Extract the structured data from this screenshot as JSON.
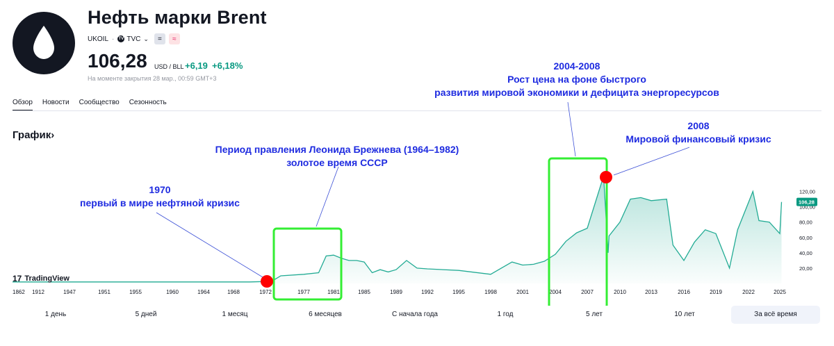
{
  "header": {
    "title": "Нефть марки Brent",
    "ticker": "UKOIL",
    "source": "TVC",
    "price": "106,28",
    "unit": "USD / BLL",
    "change": "+6,19",
    "change_pct": "+6,18%",
    "close_note": "На моменте закрытия 28 мар., 00:59 GMT+3",
    "logo_icon": "drop-icon",
    "eq_symbol": "=",
    "approx_symbol": "≈",
    "tvc_badge": "TV"
  },
  "tabs": [
    {
      "label": "Обзор"
    },
    {
      "label": "Новости"
    },
    {
      "label": "Сообщество"
    },
    {
      "label": "Сезонность"
    }
  ],
  "chart_section": {
    "title": "График",
    "title_chevron": "›",
    "watermark": "TradingView",
    "watermark_mark": "17"
  },
  "chart_data": {
    "type": "area",
    "x_tick_labels": [
      "1862",
      "1912",
      "1947",
      "1951",
      "1955",
      "1960",
      "1964",
      "1968",
      "1972",
      "1977",
      "1981",
      "1985",
      "1989",
      "1992",
      "1995",
      "1998",
      "2001",
      "2004",
      "2007",
      "2010",
      "2013",
      "2016",
      "2019",
      "2022",
      "2025"
    ],
    "y_tick_labels": [
      "20,00",
      "40,00",
      "60,00",
      "80,00",
      "100,00",
      "120,00"
    ],
    "ylim": [
      0,
      125
    ],
    "current_label": "106,28",
    "colors": {
      "line": "#22ab94",
      "fill": "#22ab94",
      "badge": "#089981",
      "marker": "#ff0000",
      "box": "#33ee33",
      "annotation": "#1e2be0"
    },
    "series": [
      {
        "x": [
          "1862",
          "1912",
          "1947",
          "1951",
          "1955",
          "1960",
          "1964",
          "1968",
          "1970",
          "1972",
          "1973",
          "1974",
          "1977",
          "1979",
          "1980",
          "1981",
          "1982",
          "1983",
          "1984",
          "1985",
          "1986",
          "1987",
          "1988",
          "1989",
          "1990",
          "1991",
          "1992",
          "1995",
          "1998",
          "1999",
          "2000",
          "2001",
          "2002",
          "2003",
          "2004",
          "2005",
          "2006",
          "2007",
          "2008-07",
          "2008-12",
          "2009",
          "2010",
          "2011",
          "2012",
          "2013",
          "2014-06",
          "2015-01",
          "2016-01",
          "2017",
          "2018",
          "2019",
          "2020-04",
          "2021",
          "2022-06",
          "2023",
          "2024",
          "2025-01",
          "2025-03"
        ],
        "values": [
          2,
          2,
          2,
          2,
          2,
          2,
          2,
          2,
          2,
          2.5,
          4,
          10,
          12,
          14,
          36,
          37,
          33,
          30,
          30,
          28,
          14,
          18,
          15,
          18,
          30,
          20,
          19,
          17,
          12,
          20,
          28,
          24,
          25,
          29,
          38,
          55,
          66,
          72,
          140,
          40,
          62,
          80,
          110,
          112,
          108,
          110,
          50,
          30,
          54,
          70,
          65,
          20,
          70,
          120,
          82,
          80,
          65,
          106.28
        ]
      }
    ]
  },
  "annotations": {
    "a1970": {
      "line1": "1970",
      "line2": "первый в мире нефтяной кризис"
    },
    "brezhnev": {
      "line1": "Период правления Леонида Брежнева (1964–1982)",
      "line2": "золотое время СССР"
    },
    "boom": {
      "line1": "2004-2008",
      "line2": "Рост цена на фоне быстрого",
      "line3": "развития мировой экономики и дефицита энергоресурсов"
    },
    "crisis": {
      "line1": "2008",
      "line2": "Мировой финансовый кризис"
    }
  },
  "ranges": [
    {
      "label": "1 день"
    },
    {
      "label": "5 дней"
    },
    {
      "label": "1 месяц"
    },
    {
      "label": "6 месяцев"
    },
    {
      "label": "С начала года"
    },
    {
      "label": "1 год"
    },
    {
      "label": "5 лет"
    },
    {
      "label": "10 лет"
    },
    {
      "label": "За всё время"
    }
  ],
  "active_range": "За всё время"
}
